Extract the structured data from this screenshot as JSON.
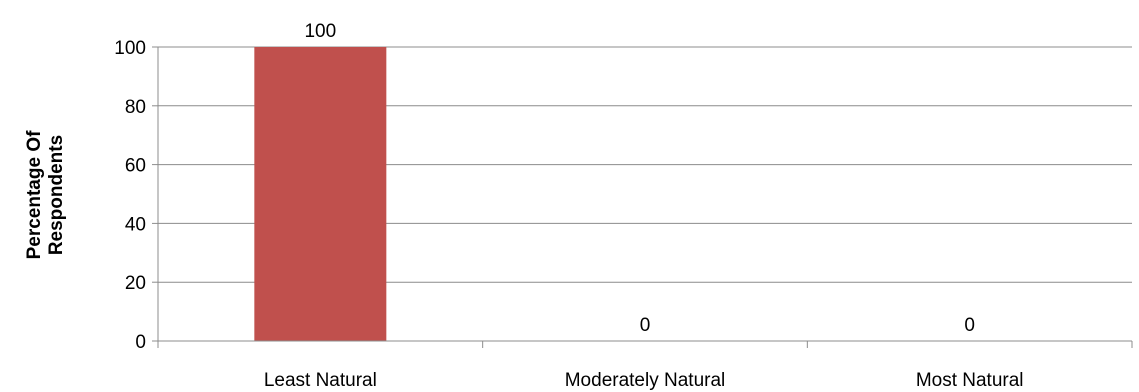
{
  "chart_data": {
    "type": "bar",
    "categories": [
      "Least Natural",
      "Moderately Natural",
      "Most Natural"
    ],
    "values": [
      100,
      0,
      0
    ],
    "data_labels": [
      "100",
      "0",
      "0"
    ],
    "title": "",
    "xlabel": "",
    "ylabel_lines": [
      "Percentage Of",
      "Respondents"
    ],
    "ylim": [
      0,
      100
    ],
    "yticks": [
      0,
      20,
      40,
      60,
      80,
      100
    ],
    "ytick_labels": [
      "0",
      "20",
      "40",
      "60",
      "80",
      "100"
    ],
    "grid": true,
    "legend": "none",
    "bar_color": "#c0504d"
  }
}
